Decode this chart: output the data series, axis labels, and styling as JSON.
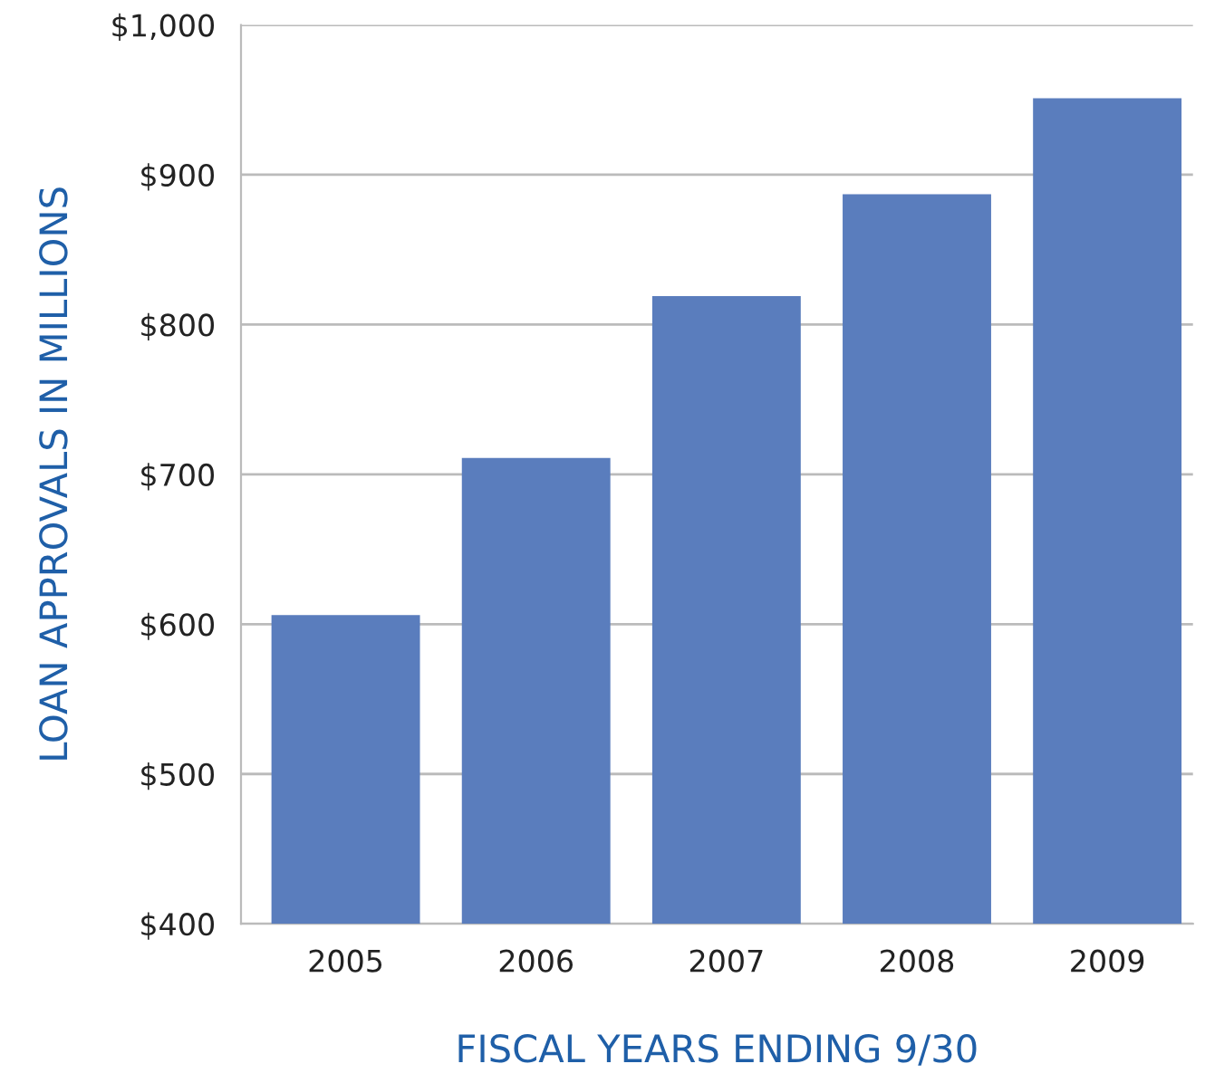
{
  "chart_data": {
    "type": "bar",
    "xlabel": "FISCAL YEARS ENDING 9/30",
    "ylabel": "LOAN APPROVALS IN MILLIONS",
    "categories": [
      "2005",
      "2006",
      "2007",
      "2008",
      "2009"
    ],
    "values": [
      606,
      711,
      819,
      887,
      951
    ],
    "color": "#5a7dbd",
    "ylim": [
      400,
      1000
    ],
    "yticks": [
      {
        "value": 400,
        "label": "$400"
      },
      {
        "value": 500,
        "label": "$500"
      },
      {
        "value": 600,
        "label": "$600"
      },
      {
        "value": 700,
        "label": "$700"
      },
      {
        "value": 800,
        "label": "$800"
      },
      {
        "value": 900,
        "label": "$900"
      },
      {
        "value": 1000,
        "label": "$1,000"
      }
    ],
    "grid": "y"
  }
}
